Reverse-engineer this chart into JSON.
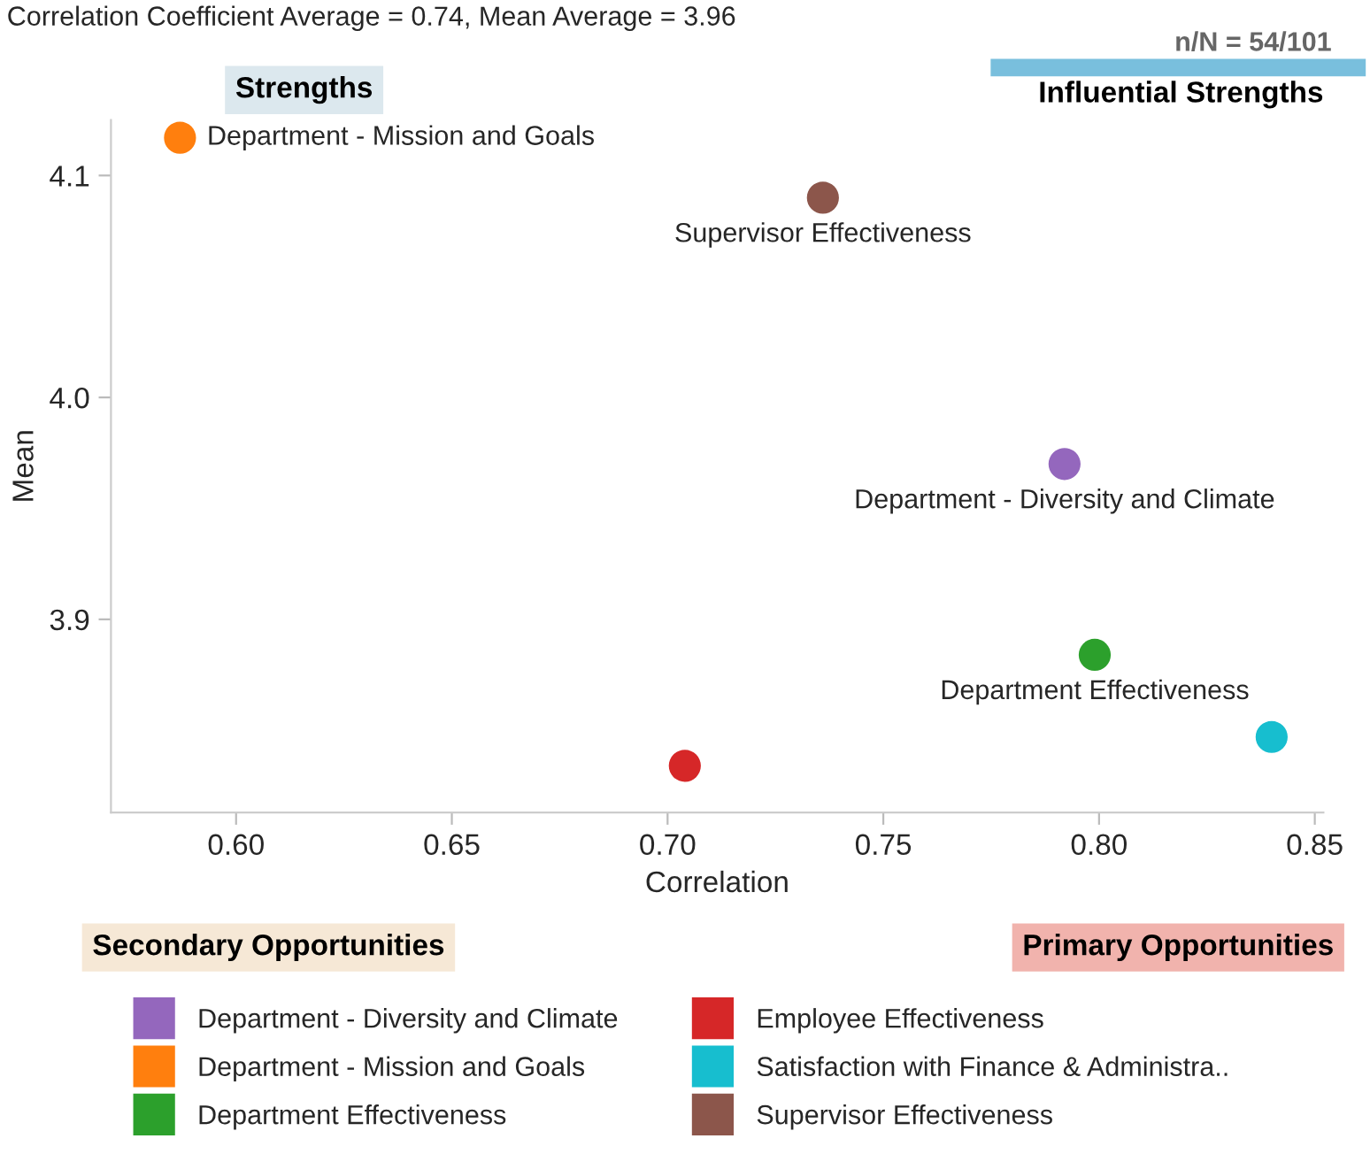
{
  "chart_data": {
    "type": "scatter",
    "subtitle": "Correlation Coefficient Average = 0.74, Mean Average = 3.96",
    "xlabel": "Correlation",
    "ylabel": "Mean",
    "xlim": [
      0.571,
      0.852
    ],
    "xticks": [
      {
        "value": 0.6,
        "label": "0.60"
      },
      {
        "value": 0.65,
        "label": "0.65"
      },
      {
        "value": 0.7,
        "label": "0.70"
      },
      {
        "value": 0.75,
        "label": "0.75"
      },
      {
        "value": 0.8,
        "label": "0.80"
      },
      {
        "value": 0.85,
        "label": "0.85"
      }
    ],
    "ylim": [
      3.813,
      4.125
    ],
    "yticks": [
      {
        "value": 3.9,
        "label": "3.9"
      },
      {
        "value": 4.0,
        "label": "4.0"
      },
      {
        "value": 4.1,
        "label": "4.1"
      }
    ],
    "grid": false,
    "legend": "bottom",
    "marker": "circle",
    "series": [
      {
        "name": "Department - Diversity and Climate",
        "color": "#9467bd",
        "x": [
          0.792
        ],
        "values": [
          3.97
        ]
      },
      {
        "name": "Department - Mission and Goals",
        "color": "#ff7f0e",
        "x": [
          0.587
        ],
        "values": [
          4.117
        ]
      },
      {
        "name": "Department Effectiveness",
        "color": "#2ca02c",
        "x": [
          0.799
        ],
        "values": [
          3.884
        ]
      },
      {
        "name": "Employee Effectiveness",
        "color": "#d62728",
        "x": [
          0.704
        ],
        "values": [
          3.834
        ]
      },
      {
        "name": "Satisfaction with Finance & Administra..",
        "color": "#17becf",
        "x": [
          0.84
        ],
        "values": [
          3.847
        ]
      },
      {
        "name": "Supervisor Effectiveness",
        "color": "#8c564b",
        "x": [
          0.736
        ],
        "values": [
          4.09
        ]
      }
    ],
    "annotations": [
      "n/N = 54/101",
      "Strengths",
      "Influential Strengths",
      "Secondary Opportunities",
      "Primary Opportunities",
      {
        "text": "Department - Mission and Goals",
        "x": 0.587,
        "y": 4.117
      },
      {
        "text": "Supervisor Effectiveness",
        "x": 0.736,
        "y": 4.09
      },
      {
        "text": "Department - Diversity and Climate",
        "x": 0.792,
        "y": 3.97
      },
      {
        "text": "Department Effectiveness",
        "x": 0.799,
        "y": 3.884
      }
    ]
  }
}
